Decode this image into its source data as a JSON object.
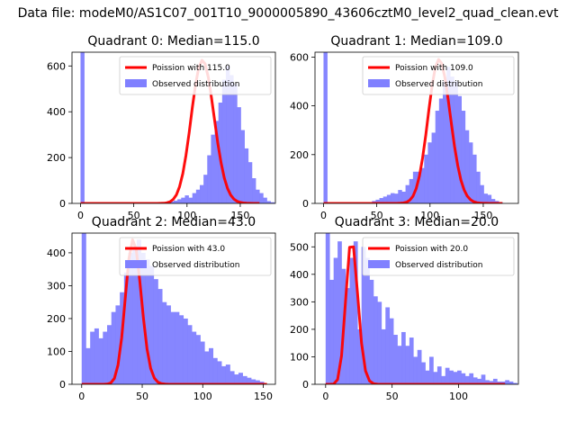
{
  "figure": {
    "suptitle": "Data file: modeM0/AS1C07_001T10_9000005890_43606cztM0_level2_quad_clean.evt"
  },
  "colors": {
    "observed": "#8080ff",
    "poisson": "#ff0000"
  },
  "chart_data": [
    {
      "type": "bar",
      "title": "Quadrant 0: Median=115.0",
      "xlim": [
        -8,
        183
      ],
      "ylim": [
        0,
        660
      ],
      "xticks": [
        0,
        50,
        100,
        150
      ],
      "yticks": [
        0,
        200,
        400,
        600
      ],
      "legend": {
        "position": "upper right",
        "entries": [
          "Poission with 115.0",
          "Observed distribution"
        ]
      },
      "series": [
        {
          "name": "Observed distribution",
          "kind": "histogram",
          "bin_width": 3.5,
          "x_start": 0,
          "values": [
            660,
            0,
            0,
            0,
            0,
            0,
            0,
            0,
            0,
            0,
            0,
            0,
            0,
            0,
            0,
            0,
            0,
            0,
            0,
            0,
            0,
            0,
            0,
            5,
            8,
            12,
            18,
            25,
            35,
            25,
            45,
            60,
            80,
            125,
            210,
            300,
            360,
            440,
            540,
            600,
            560,
            520,
            420,
            320,
            240,
            180,
            110,
            60,
            45,
            25,
            10,
            5,
            0,
            0
          ]
        },
        {
          "name": "Poission with 115.0",
          "kind": "line",
          "mean": 115,
          "amplitude": 625,
          "x_range": [
            0,
            168
          ]
        }
      ]
    },
    {
      "type": "bar",
      "title": "Quadrant 1: Median=109.0",
      "xlim": [
        -8,
        183
      ],
      "ylim": [
        0,
        620
      ],
      "xticks": [
        0,
        50,
        100,
        150
      ],
      "yticks": [
        0,
        200,
        400,
        600
      ],
      "legend": {
        "position": "upper right",
        "entries": [
          "Poission with 109.0",
          "Observed distribution"
        ]
      },
      "series": [
        {
          "name": "Observed distribution",
          "kind": "histogram",
          "bin_width": 3.5,
          "x_start": 0,
          "values": [
            620,
            0,
            0,
            0,
            0,
            0,
            0,
            0,
            0,
            0,
            0,
            0,
            0,
            10,
            15,
            22,
            28,
            35,
            42,
            40,
            55,
            48,
            75,
            100,
            130,
            130,
            145,
            200,
            250,
            290,
            380,
            430,
            500,
            560,
            520,
            500,
            440,
            380,
            300,
            250,
            200,
            130,
            75,
            40,
            35,
            18,
            10,
            5,
            0
          ]
        },
        {
          "name": "Poission with 109.0",
          "kind": "line",
          "mean": 109,
          "amplitude": 590,
          "x_range": [
            0,
            168
          ]
        }
      ]
    },
    {
      "type": "bar",
      "title": "Quadrant 2: Median=43.0",
      "xlim": [
        -8,
        160
      ],
      "ylim": [
        0,
        460
      ],
      "xticks": [
        0,
        50,
        100,
        150
      ],
      "yticks": [
        0,
        100,
        200,
        300,
        400
      ],
      "legend": {
        "position": "upper right",
        "entries": [
          "Poission with 43.0",
          "Observed distribution"
        ]
      },
      "series": [
        {
          "name": "Observed distribution",
          "kind": "histogram",
          "bin_width": 3.5,
          "x_start": 0,
          "values": [
            460,
            110,
            160,
            170,
            140,
            160,
            180,
            220,
            240,
            280,
            340,
            400,
            420,
            440,
            400,
            380,
            360,
            320,
            290,
            250,
            240,
            220,
            220,
            210,
            200,
            180,
            160,
            150,
            130,
            100,
            110,
            80,
            70,
            55,
            60,
            40,
            30,
            35,
            25,
            20,
            15,
            12,
            8
          ]
        },
        {
          "name": "Poission with 43.0",
          "kind": "line",
          "mean": 43,
          "amplitude": 440,
          "x_range": [
            0,
            155
          ]
        }
      ]
    },
    {
      "type": "bar",
      "title": "Quadrant 3: Median=20.0",
      "xlim": [
        -8,
        145
      ],
      "ylim": [
        0,
        550
      ],
      "xticks": [
        0,
        50,
        100
      ],
      "yticks": [
        0,
        100,
        200,
        300,
        400,
        500
      ],
      "legend": {
        "position": "upper right",
        "entries": [
          "Poission with 20.0",
          "Observed distribution"
        ]
      },
      "series": [
        {
          "name": "Observed distribution",
          "kind": "histogram",
          "bin_width": 3,
          "x_start": 0,
          "values": [
            550,
            380,
            460,
            520,
            420,
            350,
            460,
            520,
            200,
            500,
            460,
            380,
            320,
            300,
            200,
            280,
            240,
            180,
            140,
            190,
            140,
            170,
            100,
            125,
            80,
            50,
            100,
            45,
            65,
            30,
            60,
            50,
            45,
            50,
            40,
            30,
            40,
            25,
            20,
            35,
            15,
            12,
            20,
            10,
            10,
            15,
            10,
            5
          ]
        },
        {
          "name": "Poission with 20.0",
          "kind": "line",
          "mean": 20,
          "amplitude": 525,
          "x_range": [
            0,
            135
          ]
        }
      ]
    }
  ]
}
